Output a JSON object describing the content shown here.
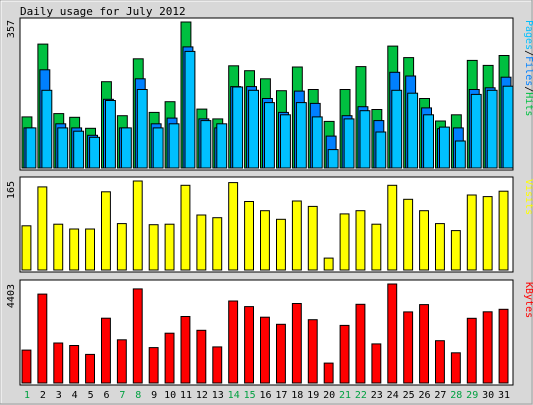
{
  "chart_data": {
    "type": "bar",
    "title": "Daily usage for July 2012",
    "days": [
      "1",
      "2",
      "3",
      "4",
      "5",
      "6",
      "7",
      "8",
      "9",
      "10",
      "11",
      "12",
      "13",
      "14",
      "15",
      "16",
      "17",
      "18",
      "19",
      "20",
      "21",
      "22",
      "23",
      "24",
      "25",
      "26",
      "27",
      "28",
      "29",
      "30",
      "31"
    ],
    "weekend_days": [
      1,
      7,
      8,
      14,
      15,
      21,
      22,
      28,
      29
    ],
    "colors": {
      "hits": "#00c040",
      "files": "#0080ff",
      "pages": "#00c0ff",
      "visits": "#ffff00",
      "kbytes": "#ff0000",
      "weekday_label": "#000000",
      "weekend_label": "#00a040"
    },
    "panels": [
      {
        "id": "hits",
        "max_label": "357",
        "ymax": 357,
        "legend": [
          {
            "text": "Pages",
            "color": "#00c0ff"
          },
          {
            "text": "/",
            "color": "#000000"
          },
          {
            "text": "Files",
            "color": "#0080ff"
          },
          {
            "text": "/",
            "color": "#000000"
          },
          {
            "text": "Hits",
            "color": "#00c040"
          }
        ],
        "series": [
          {
            "name": "Hits",
            "color": "#00c040",
            "values": [
              125,
              303,
              133,
              124,
              97,
              211,
              128,
              267,
              136,
              162,
              357,
              144,
              120,
              250,
              238,
              218,
              189,
              247,
              192,
              114,
              192,
              248,
              143,
              298,
              270,
              170,
              115,
              130,
              263,
              251,
              275
            ]
          },
          {
            "name": "Files",
            "color": "#0080ff",
            "values": [
              98,
              240,
              108,
              98,
              80,
              168,
              98,
              218,
              108,
              122,
              296,
              120,
              98,
              199,
              199,
              170,
              136,
              188,
              158,
              78,
              128,
              150,
              116,
              234,
              225,
              147,
              96,
              98,
              192,
              196,
              222
            ]
          },
          {
            "name": "Pages",
            "color": "#00c0ff",
            "values": [
              98,
              190,
              98,
              90,
              75,
              165,
              98,
              192,
              98,
              108,
              285,
              116,
              108,
              198,
              190,
              160,
              130,
              160,
              125,
              45,
              120,
              140,
              88,
              190,
              183,
              130,
              100,
              66,
              180,
              190,
              200
            ]
          }
        ]
      },
      {
        "id": "visits",
        "max_label": "165",
        "ymax": 165,
        "legend": [
          {
            "text": "Visits",
            "color": "#ffff00"
          }
        ],
        "series": [
          {
            "name": "Visits",
            "color": "#ffff00",
            "values": [
              82,
              154,
              85,
              76,
              76,
              145,
              86,
              165,
              84,
              85,
              157,
              102,
              97,
              162,
              127,
              110,
              94,
              128,
              118,
              22,
              104,
              110,
              85,
              157,
              131,
              110,
              86,
              73,
              139,
              136,
              146
            ]
          }
        ]
      },
      {
        "id": "kbytes",
        "max_label": "4403",
        "ymax": 4403,
        "legend": [
          {
            "text": "KBytes",
            "color": "#ff0000"
          }
        ],
        "series": [
          {
            "name": "KBytes",
            "color": "#ff0000",
            "values": [
              1465,
              3956,
              1777,
              1666,
              1273,
              2880,
              1923,
              4186,
              1576,
              2214,
              2959,
              2345,
              1604,
              3648,
              3400,
              2927,
              2611,
              3535,
              2817,
              886,
              2561,
              3498,
              1740,
              4403,
              3164,
              3487,
              1883,
              1342,
              2876,
              3165,
              3276
            ]
          }
        ]
      }
    ]
  }
}
